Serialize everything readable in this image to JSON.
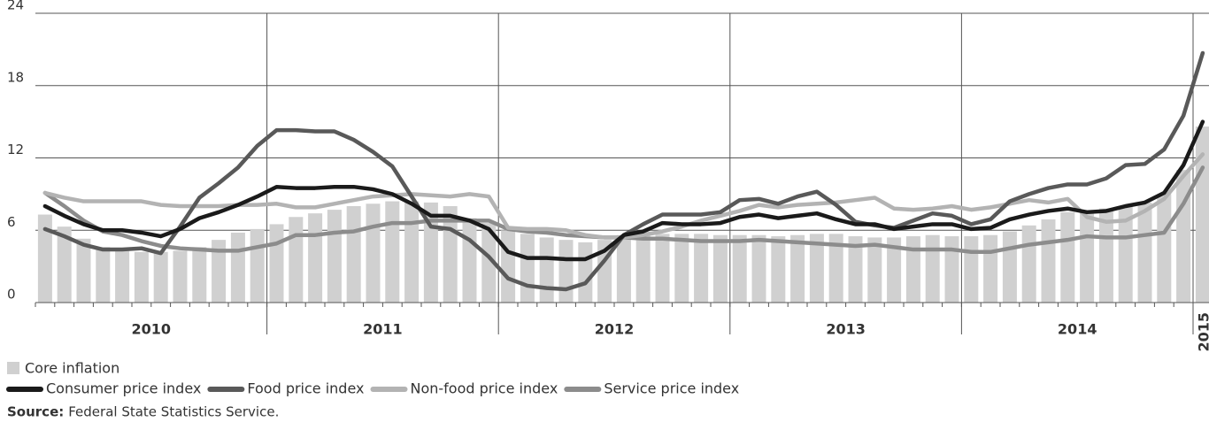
{
  "chart_data": {
    "type": "combo",
    "categories": [
      "2010",
      null,
      null,
      null,
      null,
      null,
      null,
      null,
      null,
      null,
      null,
      null,
      "2011",
      null,
      null,
      null,
      null,
      null,
      null,
      null,
      null,
      null,
      null,
      null,
      "2012",
      null,
      null,
      null,
      null,
      null,
      null,
      null,
      null,
      null,
      null,
      null,
      "2013",
      null,
      null,
      null,
      null,
      null,
      null,
      null,
      null,
      null,
      null,
      null,
      "2014",
      null,
      null,
      null,
      null,
      null,
      null,
      null,
      null,
      null,
      null,
      null,
      "2015"
    ],
    "ylim": [
      0,
      24
    ],
    "yticks": [
      0,
      6,
      12,
      18,
      24
    ],
    "grid": true,
    "series": [
      {
        "name": "Core inflation",
        "type": "bar",
        "color": "#d0d0d0",
        "values": [
          7.3,
          6.3,
          5.3,
          4.6,
          4.3,
          4.2,
          4.2,
          4.3,
          4.6,
          5.2,
          5.8,
          6.1,
          6.5,
          7.1,
          7.4,
          7.7,
          8.0,
          8.2,
          8.4,
          8.4,
          8.3,
          8.0,
          7.0,
          6.6,
          6.0,
          5.7,
          5.4,
          5.2,
          5.0,
          5.2,
          5.6,
          5.9,
          5.7,
          5.7,
          5.7,
          5.6,
          5.6,
          5.6,
          5.5,
          5.6,
          5.7,
          5.7,
          5.5,
          5.4,
          5.4,
          5.5,
          5.6,
          5.5,
          5.5,
          5.6,
          5.9,
          6.4,
          6.9,
          7.5,
          7.6,
          7.8,
          8.0,
          8.3,
          9.0,
          11.0,
          14.6
        ]
      },
      {
        "name": "Consumer price index",
        "type": "line",
        "color": "#1a1a1a",
        "values": [
          8.0,
          7.2,
          6.5,
          6.0,
          6.0,
          5.8,
          5.5,
          6.1,
          7.0,
          7.5,
          8.1,
          8.8,
          9.6,
          9.5,
          9.5,
          9.6,
          9.6,
          9.4,
          9.0,
          8.2,
          7.2,
          7.2,
          6.8,
          6.1,
          4.2,
          3.7,
          3.7,
          3.6,
          3.6,
          4.3,
          5.6,
          5.9,
          6.6,
          6.5,
          6.5,
          6.6,
          7.1,
          7.3,
          7.0,
          7.2,
          7.4,
          6.9,
          6.5,
          6.5,
          6.1,
          6.3,
          6.5,
          6.5,
          6.1,
          6.2,
          6.9,
          7.3,
          7.6,
          7.8,
          7.5,
          7.6,
          8.0,
          8.3,
          9.1,
          11.4,
          15.0
        ]
      },
      {
        "name": "Food price index",
        "type": "line",
        "color": "#595959",
        "values": [
          6.1,
          5.5,
          4.8,
          4.4,
          4.4,
          4.5,
          4.1,
          6.3,
          8.7,
          9.9,
          11.2,
          13.0,
          14.3,
          14.3,
          14.2,
          14.2,
          13.5,
          12.5,
          11.3,
          8.8,
          6.3,
          6.1,
          5.2,
          3.8,
          2.0,
          1.4,
          1.2,
          1.1,
          1.6,
          3.5,
          5.6,
          6.5,
          7.3,
          7.3,
          7.3,
          7.5,
          8.5,
          8.6,
          8.2,
          8.8,
          9.2,
          8.1,
          6.7,
          6.4,
          6.2,
          6.8,
          7.4,
          7.2,
          6.5,
          6.9,
          8.4,
          9.0,
          9.5,
          9.8,
          9.8,
          10.3,
          11.4,
          11.5,
          12.7,
          15.5,
          20.7
        ]
      },
      {
        "name": "Non-food price index",
        "type": "line",
        "color": "#b3b3b3",
        "values": [
          9.1,
          8.7,
          8.4,
          8.4,
          8.4,
          8.4,
          8.1,
          8.0,
          8.0,
          8.0,
          8.1,
          8.1,
          8.2,
          7.9,
          7.9,
          8.2,
          8.5,
          8.8,
          8.9,
          9.0,
          8.9,
          8.8,
          9.0,
          8.8,
          6.2,
          6.1,
          6.1,
          6.0,
          5.6,
          5.4,
          5.4,
          5.6,
          5.9,
          6.3,
          6.8,
          7.2,
          7.6,
          8.1,
          7.9,
          8.1,
          8.2,
          8.3,
          8.5,
          8.7,
          7.8,
          7.7,
          7.8,
          8.0,
          7.7,
          7.9,
          8.2,
          8.5,
          8.3,
          8.6,
          7.1,
          6.7,
          6.8,
          7.6,
          8.6,
          10.5,
          12.3
        ]
      },
      {
        "name": "Service price index",
        "type": "line",
        "color": "#8c8c8c",
        "values": [
          9.1,
          8.0,
          6.8,
          5.9,
          5.6,
          5.1,
          4.7,
          4.5,
          4.4,
          4.3,
          4.3,
          4.6,
          4.9,
          5.6,
          5.6,
          5.8,
          5.9,
          6.3,
          6.6,
          6.6,
          6.8,
          6.8,
          6.8,
          6.8,
          6.1,
          5.9,
          5.8,
          5.6,
          5.5,
          5.4,
          5.4,
          5.3,
          5.3,
          5.2,
          5.1,
          5.1,
          5.1,
          5.2,
          5.1,
          5.0,
          4.9,
          4.8,
          4.7,
          4.8,
          4.6,
          4.4,
          4.4,
          4.4,
          4.2,
          4.2,
          4.5,
          4.8,
          5.0,
          5.2,
          5.5,
          5.4,
          5.4,
          5.6,
          5.8,
          8.2,
          11.2
        ]
      }
    ],
    "source_label": "Source:",
    "source": "Federal State Statistics Service."
  }
}
